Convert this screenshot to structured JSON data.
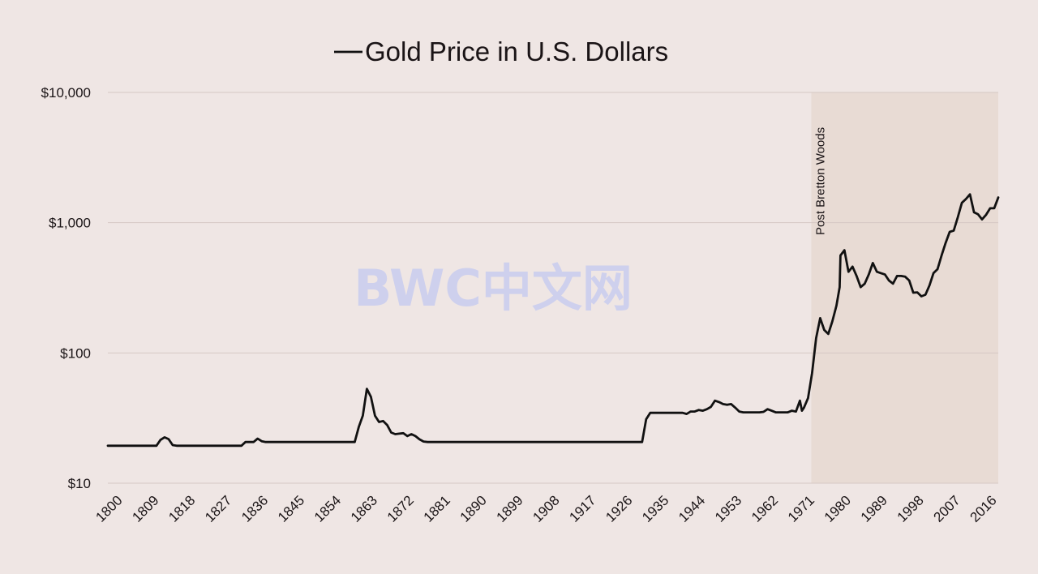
{
  "watermark": "BWC中文网",
  "chart_data": {
    "type": "line",
    "title": "Gold Price in U.S. Dollars",
    "xlabel": "",
    "ylabel": "",
    "yscale": "log",
    "ylim": [
      10,
      10000
    ],
    "xlim": [
      1800,
      2020
    ],
    "grid": "horizontal",
    "legend": "inline-title",
    "y_ticks": [
      {
        "value": 10,
        "label": "$10"
      },
      {
        "value": 100,
        "label": "$100"
      },
      {
        "value": 1000,
        "label": "$1,000"
      },
      {
        "value": 10000,
        "label": "$10,000"
      }
    ],
    "x_ticks": [
      1800,
      1809,
      1818,
      1827,
      1836,
      1845,
      1854,
      1863,
      1872,
      1881,
      1890,
      1899,
      1908,
      1917,
      1926,
      1935,
      1944,
      1953,
      1962,
      1971,
      1980,
      1989,
      1998,
      2007,
      2016
    ],
    "shaded_region": {
      "from": 1971,
      "to": 2020,
      "label": "Post Bretton Woods",
      "color": "#e8dbd4"
    },
    "series": [
      {
        "name": "Gold Price in U.S. Dollars",
        "color": "#111111",
        "points": [
          [
            1800,
            19.4
          ],
          [
            1812,
            19.4
          ],
          [
            1813,
            21.5
          ],
          [
            1814,
            22.5
          ],
          [
            1815,
            21.8
          ],
          [
            1816,
            19.6
          ],
          [
            1817,
            19.4
          ],
          [
            1833,
            19.4
          ],
          [
            1834,
            20.7
          ],
          [
            1836,
            20.7
          ],
          [
            1837,
            22.0
          ],
          [
            1838,
            21.0
          ],
          [
            1839,
            20.7
          ],
          [
            1861,
            20.7
          ],
          [
            1862,
            27.0
          ],
          [
            1863,
            33.0
          ],
          [
            1864,
            53.0
          ],
          [
            1865,
            46.0
          ],
          [
            1866,
            33.0
          ],
          [
            1867,
            29.5
          ],
          [
            1868,
            30.0
          ],
          [
            1869,
            28.0
          ],
          [
            1870,
            24.5
          ],
          [
            1871,
            23.8
          ],
          [
            1872,
            24.0
          ],
          [
            1873,
            24.2
          ],
          [
            1874,
            23.0
          ],
          [
            1875,
            23.8
          ],
          [
            1876,
            23.0
          ],
          [
            1877,
            21.7
          ],
          [
            1878,
            20.9
          ],
          [
            1879,
            20.7
          ],
          [
            1932,
            20.7
          ],
          [
            1933,
            31.0
          ],
          [
            1934,
            34.7
          ],
          [
            1942,
            34.7
          ],
          [
            1943,
            34.0
          ],
          [
            1944,
            35.5
          ],
          [
            1945,
            35.5
          ],
          [
            1946,
            36.5
          ],
          [
            1947,
            36.0
          ],
          [
            1948,
            37.0
          ],
          [
            1949,
            38.5
          ],
          [
            1950,
            43.0
          ],
          [
            1951,
            42.0
          ],
          [
            1952,
            40.5
          ],
          [
            1953,
            40.0
          ],
          [
            1954,
            40.5
          ],
          [
            1955,
            38.0
          ],
          [
            1956,
            35.5
          ],
          [
            1957,
            35.0
          ],
          [
            1960,
            35.0
          ],
          [
            1961,
            35.0
          ],
          [
            1962,
            35.3
          ],
          [
            1963,
            37.0
          ],
          [
            1964,
            36.0
          ],
          [
            1965,
            35.0
          ],
          [
            1968,
            35.0
          ],
          [
            1969,
            36.0
          ],
          [
            1970,
            35.5
          ],
          [
            1971,
            43.0
          ],
          [
            1971.5,
            36.0
          ],
          [
            1972,
            38.0
          ],
          [
            1973,
            45.0
          ],
          [
            1974,
            70.0
          ],
          [
            1975,
            130.0
          ],
          [
            1976,
            185.0
          ],
          [
            1977,
            150.0
          ],
          [
            1978,
            140.0
          ],
          [
            1979,
            175.0
          ],
          [
            1980,
            230.0
          ],
          [
            1980.8,
            320.0
          ],
          [
            1981,
            560.0
          ],
          [
            1982,
            615.0
          ],
          [
            1983,
            420.0
          ],
          [
            1984,
            460.0
          ],
          [
            1985,
            390.0
          ],
          [
            1986,
            320.0
          ],
          [
            1987,
            340.0
          ],
          [
            1988,
            400.0
          ],
          [
            1989,
            490.0
          ],
          [
            1990,
            420.0
          ],
          [
            1991,
            410.0
          ],
          [
            1992,
            400.0
          ],
          [
            1993,
            360.0
          ],
          [
            1994,
            340.0
          ],
          [
            1995,
            390.0
          ],
          [
            1996,
            390.0
          ],
          [
            1997,
            385.0
          ],
          [
            1998,
            360.0
          ],
          [
            1999,
            290.0
          ],
          [
            2000,
            292.0
          ],
          [
            2001,
            272.0
          ],
          [
            2002,
            280.0
          ],
          [
            2003,
            330.0
          ],
          [
            2004,
            410.0
          ],
          [
            2005,
            440.0
          ],
          [
            2006,
            560.0
          ],
          [
            2007,
            700.0
          ],
          [
            2008,
            850.0
          ],
          [
            2009,
            870.0
          ],
          [
            2010,
            1100.0
          ],
          [
            2011,
            1420.0
          ],
          [
            2012,
            1520.0
          ],
          [
            2013,
            1650.0
          ],
          [
            2014,
            1200.0
          ],
          [
            2015,
            1160.0
          ],
          [
            2016,
            1060.0
          ],
          [
            2017,
            1150.0
          ],
          [
            2018,
            1290.0
          ],
          [
            2019,
            1290.0
          ],
          [
            2020,
            1560.0
          ]
        ]
      }
    ]
  }
}
